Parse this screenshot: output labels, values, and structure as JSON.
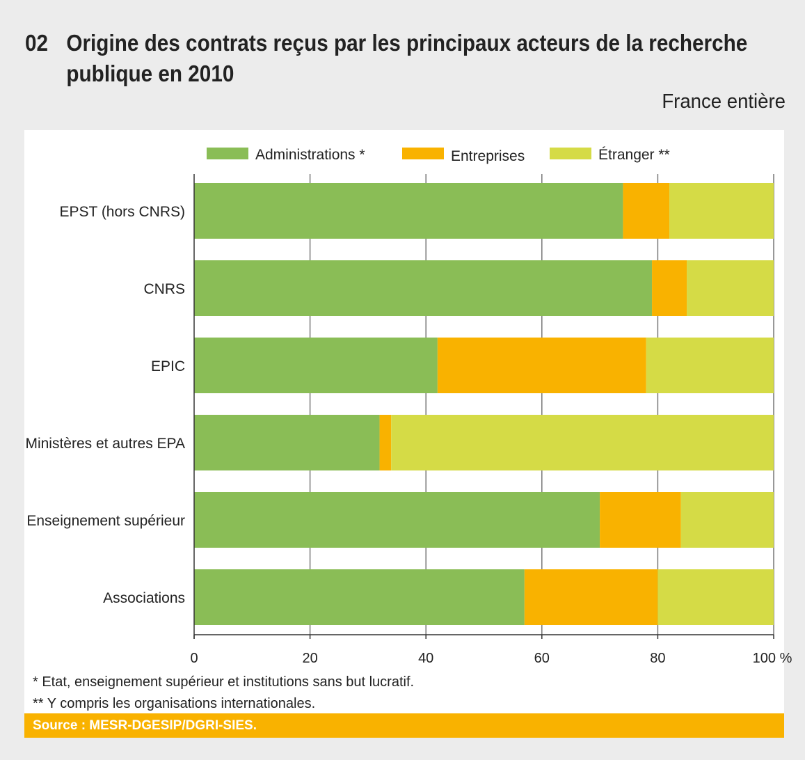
{
  "title_number": "02",
  "title": "Origine des contrats reçus par les principaux acteurs de la recherche publique en 2010",
  "subtitle": "France entière",
  "source": "Source : MESR-DGESIP/DGRI-SIES.",
  "chart_data": {
    "type": "bar",
    "orientation": "horizontal",
    "stacked": true,
    "categories": [
      "EPST (hors CNRS)",
      "CNRS",
      "EPIC",
      "Ministères et autres EPA",
      "Enseignement supérieur",
      "Associations"
    ],
    "series": [
      {
        "name": "Administrations *",
        "color": "#8abd56",
        "values": [
          74,
          79,
          42,
          32,
          70,
          57
        ]
      },
      {
        "name": "Entreprises",
        "color": "#f9b200",
        "values": [
          8,
          6,
          36,
          2,
          14,
          23
        ]
      },
      {
        "name": "Étranger **",
        "color": "#d5db46",
        "values": [
          18,
          15,
          22,
          66,
          16,
          20
        ]
      }
    ],
    "xlim": [
      0,
      100
    ],
    "xticks": [
      "0",
      "20",
      "40",
      "60",
      "80",
      "100 %"
    ],
    "grid": true,
    "legend": "top",
    "footnotes": [
      "* Etat, enseignement supérieur et institutions sans but lucratif.",
      "** Y compris les organisations internationales."
    ]
  }
}
